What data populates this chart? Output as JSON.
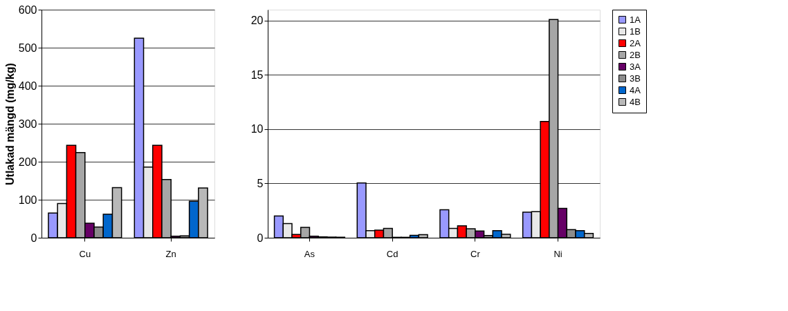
{
  "chart_data": [
    {
      "type": "bar",
      "ylabel": "Utlakad mängd (mg/kg)",
      "categories": [
        "Cu",
        "Zn"
      ],
      "ylim": [
        0,
        600
      ],
      "yticks": [
        0,
        100,
        200,
        300,
        400,
        500,
        600
      ],
      "grid": "y",
      "legend": false,
      "series": [
        {
          "color": "#9999ff",
          "values": [
            65,
            525
          ]
        },
        {
          "color": "#e8e8e8",
          "values": [
            90,
            186
          ]
        },
        {
          "color": "#ff0000",
          "values": [
            243,
            243
          ]
        },
        {
          "color": "#a6a6a6",
          "values": [
            224,
            153
          ]
        },
        {
          "color": "#660066",
          "values": [
            38,
            4
          ]
        },
        {
          "color": "#8c8c8c",
          "values": [
            28,
            5
          ]
        },
        {
          "color": "#0066cc",
          "values": [
            62,
            96
          ]
        },
        {
          "color": "#b8b8b8",
          "values": [
            132,
            131
          ]
        }
      ]
    },
    {
      "type": "bar",
      "categories": [
        "As",
        "Cd",
        "Cr",
        "Ni"
      ],
      "ylim": [
        0,
        21
      ],
      "yticks": [
        0,
        5,
        10,
        15,
        20
      ],
      "grid": "y",
      "legend": "right",
      "series": [
        {
          "name": "1A",
          "color": "#9999ff",
          "values": [
            2.0,
            5.05,
            2.57,
            2.35
          ]
        },
        {
          "name": "1B",
          "color": "#e8e8e8",
          "values": [
            1.3,
            0.66,
            0.86,
            2.41
          ]
        },
        {
          "name": "2A",
          "color": "#ff0000",
          "values": [
            0.3,
            0.7,
            1.1,
            10.7
          ]
        },
        {
          "name": "2B",
          "color": "#a6a6a6",
          "values": [
            0.96,
            0.86,
            0.82,
            20.1
          ]
        },
        {
          "name": "3A",
          "color": "#660066",
          "values": [
            0.14,
            0.04,
            0.62,
            2.7
          ]
        },
        {
          "name": "3B",
          "color": "#8c8c8c",
          "values": [
            0.08,
            0.04,
            0.2,
            0.75
          ]
        },
        {
          "name": "4A",
          "color": "#0066cc",
          "values": [
            0.06,
            0.22,
            0.66,
            0.65
          ]
        },
        {
          "name": "4B",
          "color": "#b8b8b8",
          "values": [
            0.04,
            0.28,
            0.32,
            0.4
          ]
        }
      ]
    }
  ]
}
